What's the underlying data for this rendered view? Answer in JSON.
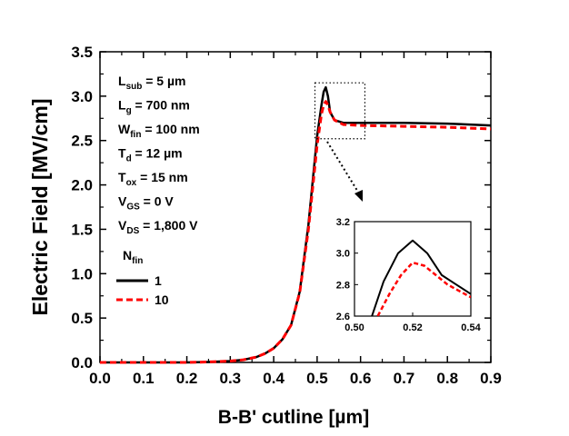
{
  "chart_data": [
    {
      "type": "line",
      "xlabel": "B-B' cutline [µm]",
      "ylabel": "Electric Field [MV/cm]",
      "xlim": [
        0.0,
        0.9
      ],
      "ylim": [
        0.0,
        3.5
      ],
      "x_ticks": [
        "0.0",
        "0.1",
        "0.2",
        "0.3",
        "0.4",
        "0.5",
        "0.6",
        "0.7",
        "0.8",
        "0.9"
      ],
      "y_ticks": [
        "0.0",
        "0.5",
        "1.0",
        "1.5",
        "2.0",
        "2.5",
        "3.0",
        "3.5"
      ],
      "annotations": [
        {
          "main": "L",
          "sub": "sub",
          "rest": " = 5 µm"
        },
        {
          "main": "L",
          "sub": "g",
          "rest": "  = 700 nm"
        },
        {
          "main": "W",
          "sub": "fin",
          "rest": " = 100 nm"
        },
        {
          "main": "T",
          "sub": "d",
          "rest": "  = 12 µm"
        },
        {
          "main": "T",
          "sub": "ox",
          "rest": "  = 15 nm"
        },
        {
          "main": "V",
          "sub": "GS",
          "rest": " = 0 V"
        },
        {
          "main": "V",
          "sub": "DS",
          "rest": " = 1,800 V"
        }
      ],
      "legend": {
        "title_main": "N",
        "title_sub": "fin",
        "placement": "left-middle",
        "entries": [
          "1",
          "10"
        ]
      },
      "series": [
        {
          "name": "1",
          "color": "#000000",
          "style": "solid",
          "x": [
            0.0,
            0.1,
            0.2,
            0.25,
            0.3,
            0.33,
            0.36,
            0.38,
            0.4,
            0.42,
            0.44,
            0.46,
            0.48,
            0.5,
            0.51,
            0.515,
            0.52,
            0.525,
            0.53,
            0.54,
            0.56,
            0.6,
            0.7,
            0.8,
            0.9
          ],
          "y": [
            0.0,
            0.0,
            0.0,
            0.005,
            0.015,
            0.03,
            0.06,
            0.1,
            0.16,
            0.26,
            0.42,
            0.8,
            1.55,
            2.55,
            2.9,
            3.05,
            3.1,
            3.0,
            2.82,
            2.73,
            2.7,
            2.7,
            2.7,
            2.69,
            2.67
          ]
        },
        {
          "name": "10",
          "color": "#ff0000",
          "style": "dashed",
          "x": [
            0.0,
            0.1,
            0.2,
            0.25,
            0.3,
            0.33,
            0.36,
            0.38,
            0.4,
            0.42,
            0.44,
            0.46,
            0.48,
            0.5,
            0.51,
            0.515,
            0.52,
            0.525,
            0.53,
            0.54,
            0.56,
            0.6,
            0.7,
            0.8,
            0.9
          ],
          "y": [
            0.0,
            0.0,
            0.0,
            0.005,
            0.015,
            0.03,
            0.06,
            0.1,
            0.16,
            0.26,
            0.42,
            0.79,
            1.5,
            2.45,
            2.8,
            2.9,
            2.94,
            2.9,
            2.82,
            2.73,
            2.68,
            2.67,
            2.66,
            2.65,
            2.63
          ]
        }
      ]
    },
    {
      "type": "line",
      "role": "inset",
      "xlim": [
        0.5,
        0.54
      ],
      "ylim": [
        2.6,
        3.2
      ],
      "x_ticks": [
        "0.50",
        "0.52",
        "0.54"
      ],
      "y_ticks": [
        "2.6",
        "2.8",
        "3.0",
        "3.2"
      ],
      "series": [
        {
          "name": "1",
          "color": "#000000",
          "style": "solid",
          "x": [
            0.506,
            0.51,
            0.515,
            0.52,
            0.525,
            0.53,
            0.535,
            0.54
          ],
          "y": [
            2.6,
            2.82,
            3.0,
            3.08,
            3.0,
            2.86,
            2.8,
            2.74
          ]
        },
        {
          "name": "10",
          "color": "#ff0000",
          "style": "dashed",
          "x": [
            0.508,
            0.512,
            0.516,
            0.52,
            0.524,
            0.528,
            0.532,
            0.536,
            0.54
          ],
          "y": [
            2.6,
            2.74,
            2.86,
            2.94,
            2.92,
            2.86,
            2.8,
            2.76,
            2.72
          ]
        }
      ]
    }
  ]
}
